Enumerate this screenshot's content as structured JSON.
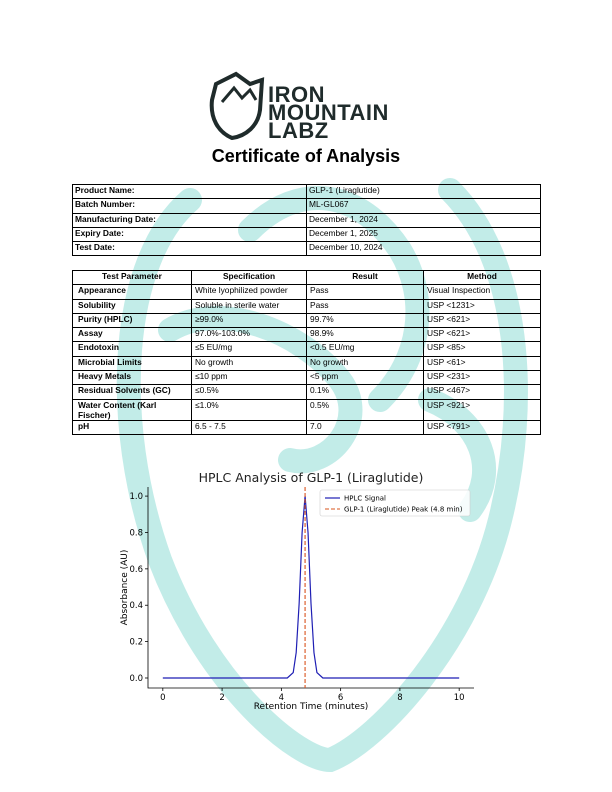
{
  "header": {
    "logo": [
      "IRON",
      "MOUNTAIN",
      "LABZ"
    ],
    "title": "Certificate of Analysis"
  },
  "product_info": {
    "rows": [
      [
        "Product Name:",
        "GLP-1 (Liraglutide)"
      ],
      [
        "Batch Number:",
        "ML-GL067"
      ],
      [
        "Manufacturing Date:",
        "December 1, 2024"
      ],
      [
        "Expiry Date:",
        "December 1, 2025"
      ],
      [
        "Test Date:",
        "December 10, 2024"
      ]
    ]
  },
  "tests": {
    "columns": [
      "Test Parameter",
      "Specification",
      "Result",
      "Method"
    ],
    "rows": [
      [
        "Appearance",
        "White lyophilized powder",
        "Pass",
        "Visual Inspection"
      ],
      [
        "Solubility",
        "Soluble in sterile water",
        "Pass",
        "USP <1231>"
      ],
      [
        "Purity (HPLC)",
        "≥99.0%",
        "99.7%",
        "USP <621>"
      ],
      [
        "Assay",
        "97.0%-103.0%",
        "98.9%",
        "USP <621>"
      ],
      [
        "Endotoxin",
        "≤5 EU/mg",
        "<0.5 EU/mg",
        "USP <85>"
      ],
      [
        "Microbial Limits",
        "No growth",
        "No growth",
        "USP <61>"
      ],
      [
        "Heavy Metals",
        "≤10 ppm",
        "<5 ppm",
        "USP <231>"
      ],
      [
        "Residual Solvents (GC)",
        "≤0.5%",
        "0.1%",
        "USP <467>"
      ],
      [
        "Water Content (Karl Fischer)",
        "≤1.0%",
        "0.5%",
        "USP <921>"
      ],
      [
        "pH",
        "6.5 - 7.5",
        "7.0",
        "USP <791>"
      ]
    ]
  },
  "chart_data": {
    "type": "line",
    "title": "HPLC Analysis of GLP-1 (Liraglutide)",
    "x_label": "Retention Time (minutes)",
    "y_label": "Absorbance (AU)",
    "x": [
      0,
      1,
      2,
      3,
      4,
      4.2,
      4.4,
      4.5,
      4.6,
      4.7,
      4.8,
      4.9,
      5.0,
      5.1,
      5.2,
      5.4,
      6,
      7,
      8,
      9,
      10
    ],
    "series": [
      {
        "name": "HPLC Signal",
        "color": "#1f1fb4",
        "values": [
          0,
          0,
          0,
          0,
          0,
          0,
          0.03,
          0.14,
          0.41,
          0.8,
          1.0,
          0.8,
          0.41,
          0.14,
          0.03,
          0,
          0,
          0,
          0,
          0,
          0
        ]
      }
    ],
    "reference_line": {
      "name": "GLP-1 (Liraglutide) Peak (4.8 min)",
      "color": "#d9541e",
      "x": 4.8
    },
    "xlim": [
      -0.5,
      10.5
    ],
    "ylim": [
      -0.055,
      1.05
    ],
    "xticks": [
      0,
      2,
      4,
      6,
      8,
      10
    ],
    "yticks": [
      {
        "value": 0,
        "label": "0.0"
      },
      {
        "value": 0.2,
        "label": "0.2"
      },
      {
        "value": 0.4,
        "label": "0.4"
      },
      {
        "value": 0.6,
        "label": "0.6"
      },
      {
        "value": 0.8,
        "label": "0.8"
      },
      {
        "value": 1.0,
        "label": "1.0"
      }
    ],
    "legend": "upper right"
  }
}
